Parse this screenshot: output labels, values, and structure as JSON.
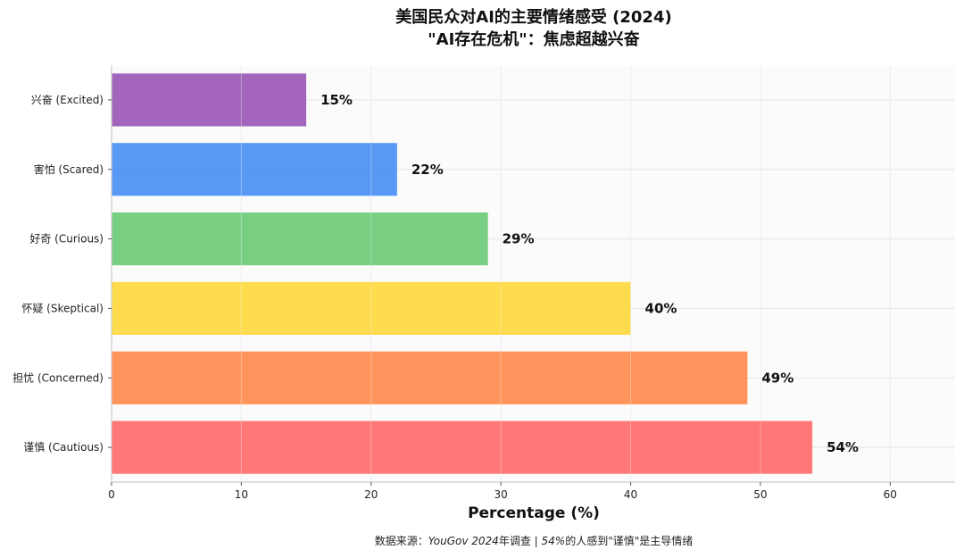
{
  "chart_data": {
    "type": "bar",
    "orientation": "horizontal",
    "title": "美国民众对AI的主要情绪感受 (2024)",
    "subtitle": "\"AI存在危机\"：焦虑超越兴奋",
    "xlabel": "Percentage (%)",
    "ylabel": "",
    "xlim": [
      0,
      65
    ],
    "xticks": [
      "0",
      "10",
      "20",
      "30",
      "40",
      "50",
      "60"
    ],
    "grid": true,
    "categories": [
      "兴奋 (Excited)",
      "害怕 (Scared)",
      "好奇 (Curious)",
      "怀疑 (Skeptical)",
      "担忧 (Concerned)",
      "谨慎 (Cautious)"
    ],
    "values": [
      15,
      22,
      29,
      40,
      49,
      54
    ],
    "value_labels": [
      "15%",
      "22%",
      "29%",
      "40%",
      "49%",
      "54%"
    ],
    "colors": [
      "#9b59b6",
      "#4a90f5",
      "#6dcb76",
      "#ffd83f",
      "#ff8c4f",
      "#ff6b6b"
    ],
    "footnote": {
      "prefix": "数据来源：",
      "italic_source": "YouGov 2024",
      "middle": "年调查 | ",
      "italic_pct": "54%",
      "suffix": "的人感到\"谨慎\"是主导情绪"
    }
  }
}
